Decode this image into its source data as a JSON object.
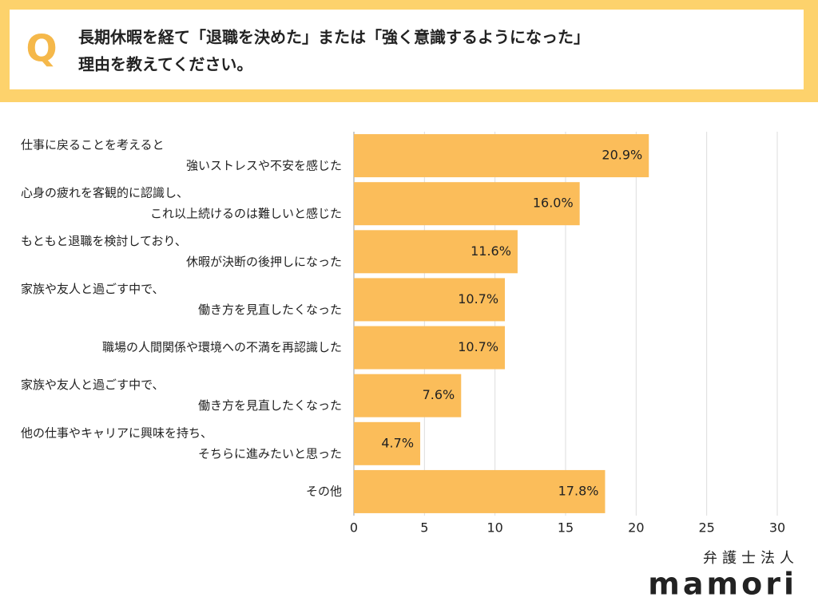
{
  "header": {
    "mark": "Q",
    "question": [
      "長期休暇を経て「退職を決めた」または「強く意識するようになった」",
      "理由を教えてください。"
    ]
  },
  "chart_data": {
    "type": "bar",
    "orientation": "horizontal",
    "categories": [
      [
        "仕事に戻ることを考えると",
        "強いストレスや不安を感じた"
      ],
      [
        "心身の疲れを客観的に認識し、",
        "これ以上続けるのは難しいと感じた"
      ],
      [
        "もともと退職を検討しており、",
        "休暇が決断の後押しになった"
      ],
      [
        "家族や友人と過ごす中で、",
        "働き方を見直したくなった"
      ],
      [
        "職場の人間関係や環境への不満を再認識した"
      ],
      [
        "家族や友人と過ごす中で、",
        "働き方を見直したくなった"
      ],
      [
        "他の仕事やキャリアに興味を持ち、",
        "そちらに進みたいと思った"
      ],
      [
        "その他"
      ]
    ],
    "values": [
      20.9,
      16.0,
      11.6,
      10.7,
      10.7,
      7.6,
      4.7,
      17.8
    ],
    "value_labels": [
      "20.9%",
      "16.0%",
      "11.6%",
      "10.7%",
      "10.7%",
      "7.6%",
      "4.7%",
      "17.8%"
    ],
    "color": "#fbbd5a",
    "xlim": [
      0,
      30
    ],
    "xticks": [
      0,
      5,
      10,
      15,
      20,
      25,
      30
    ],
    "grid": true
  },
  "footer": {
    "org": "弁護士法人",
    "brand": "mamori"
  }
}
